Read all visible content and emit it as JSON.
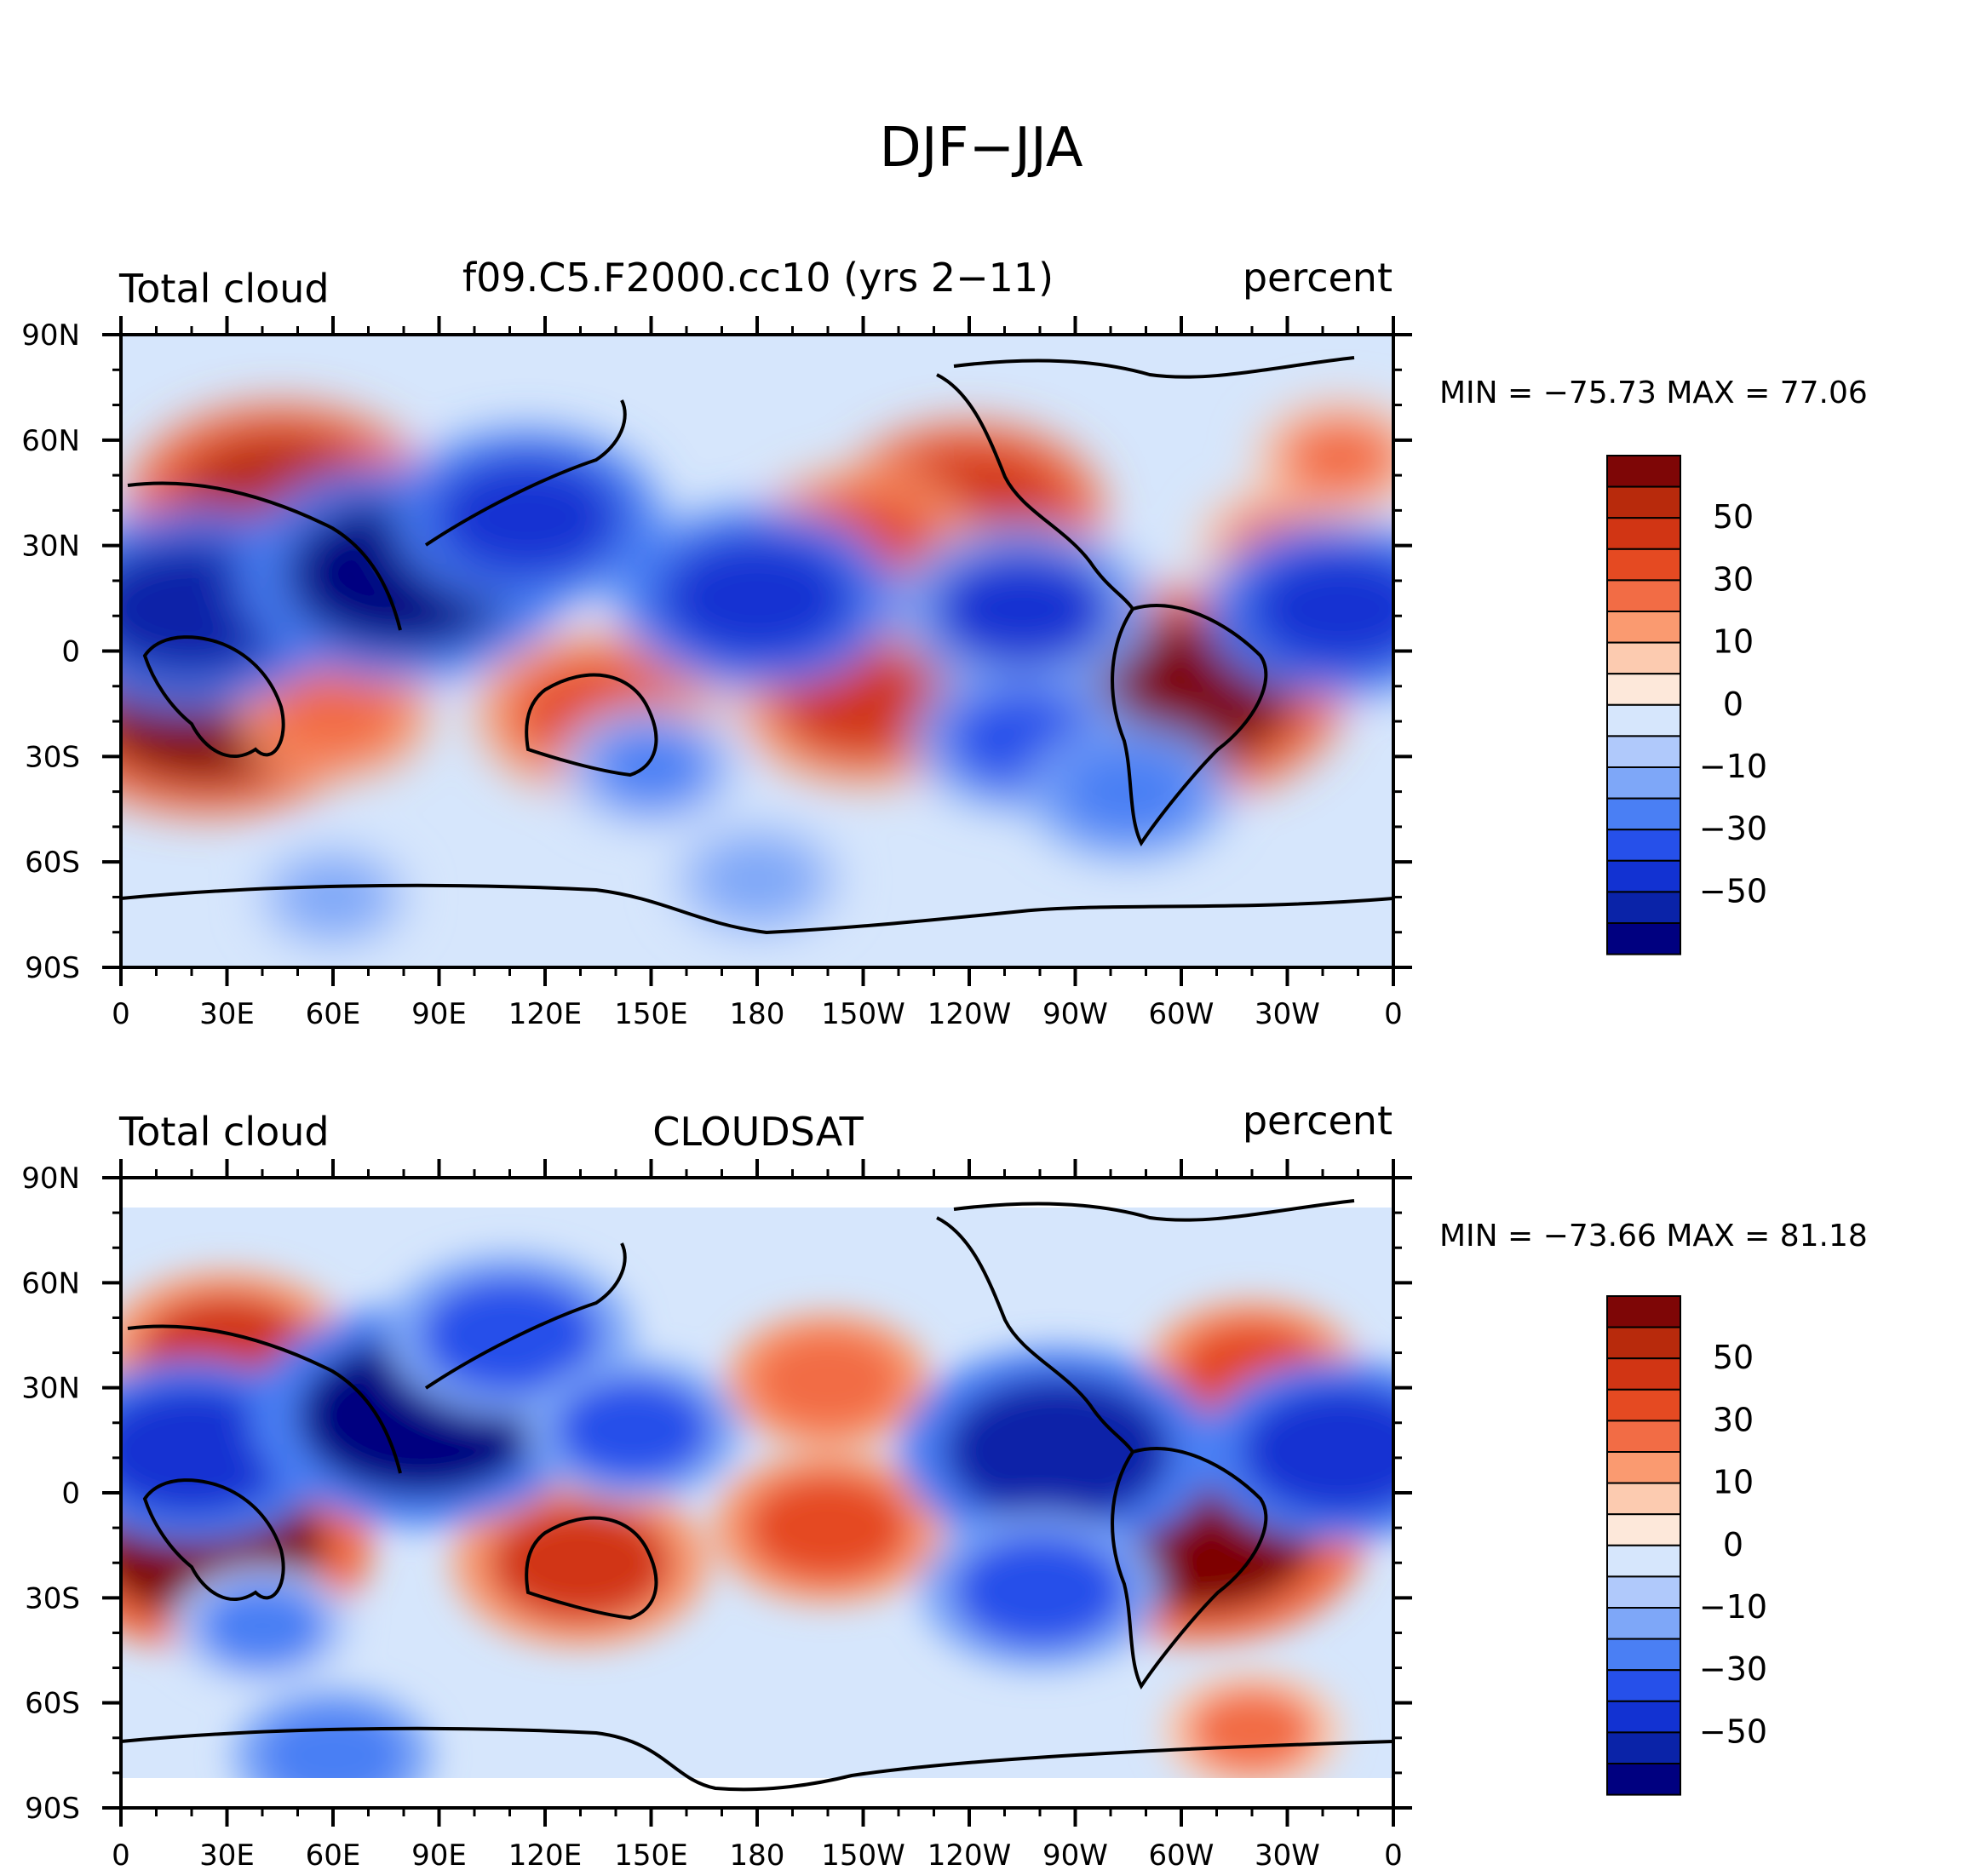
{
  "figure": {
    "title": "DJF−JJA"
  },
  "panels": [
    {
      "id": "model",
      "left_title": "Total cloud",
      "center_title": "f09.C5.F2000.cc10 (yrs 2−11)",
      "right_title": "percent",
      "min_max": "MIN = −75.73 MAX =   77.06",
      "lat_range": [
        -90,
        90
      ]
    },
    {
      "id": "obs",
      "left_title": "Total cloud",
      "center_title": "CLOUDSAT",
      "right_title": "percent",
      "min_max": "MIN = −73.66 MAX =   81.18",
      "lat_range": [
        -82,
        82
      ]
    }
  ],
  "axes": {
    "lat_ticks": [
      {
        "value": 90,
        "label": "90N"
      },
      {
        "value": 60,
        "label": "60N"
      },
      {
        "value": 30,
        "label": "30N"
      },
      {
        "value": 0,
        "label": "0"
      },
      {
        "value": -30,
        "label": "30S"
      },
      {
        "value": -60,
        "label": "60S"
      },
      {
        "value": -90,
        "label": "90S"
      }
    ],
    "lon_ticks": [
      {
        "value": 0,
        "label": "0"
      },
      {
        "value": 30,
        "label": "30E"
      },
      {
        "value": 60,
        "label": "60E"
      },
      {
        "value": 90,
        "label": "90E"
      },
      {
        "value": 120,
        "label": "120E"
      },
      {
        "value": 150,
        "label": "150E"
      },
      {
        "value": 180,
        "label": "180"
      },
      {
        "value": 210,
        "label": "150W"
      },
      {
        "value": 240,
        "label": "120W"
      },
      {
        "value": 270,
        "label": "90W"
      },
      {
        "value": 300,
        "label": "60W"
      },
      {
        "value": 330,
        "label": "30W"
      },
      {
        "value": 360,
        "label": "0"
      }
    ]
  },
  "colorbar": {
    "labels": [
      "50",
      "30",
      "10",
      "0",
      "−10",
      "−30",
      "−50"
    ],
    "levels": [
      -70,
      -60,
      -50,
      -40,
      -30,
      -20,
      -10,
      -5,
      0,
      5,
      10,
      20,
      30,
      40,
      50,
      60,
      70
    ],
    "colors": [
      "#000080",
      "#0a23a8",
      "#1232d2",
      "#2650ea",
      "#4a7ff4",
      "#7ea7f8",
      "#b0c9fb",
      "#d6e6fc",
      "#fde8da",
      "#fccbb0",
      "#fa9a70",
      "#f26c45",
      "#e54a22",
      "#d13514",
      "#b82a0c",
      "#7e0606"
    ]
  },
  "chart_data": [
    {
      "type": "heatmap",
      "title": "f09.C5.F2000.cc10 (yrs 2−11)",
      "variable": "Total cloud",
      "units": "percent",
      "min": -75.73,
      "max": 77.06,
      "lon_range": [
        0,
        360
      ],
      "lat_range": [
        -90,
        90
      ],
      "anomalies": [
        {
          "lon": 25,
          "lat": -15,
          "value": 65
        },
        {
          "lon": 300,
          "lat": -12,
          "value": 60
        },
        {
          "lon": 45,
          "lat": 42,
          "value": 55
        },
        {
          "lon": 240,
          "lat": 40,
          "value": 45
        },
        {
          "lon": 135,
          "lat": -18,
          "value": 38
        },
        {
          "lon": 210,
          "lat": -15,
          "value": 40
        },
        {
          "lon": 210,
          "lat": 30,
          "value": 35
        },
        {
          "lon": 60,
          "lat": -18,
          "value": 25
        },
        {
          "lon": 330,
          "lat": 30,
          "value": 22
        },
        {
          "lon": 345,
          "lat": 55,
          "value": 20
        },
        {
          "lon": 20,
          "lat": 12,
          "value": -55
        },
        {
          "lon": 80,
          "lat": 22,
          "value": -62
        },
        {
          "lon": 115,
          "lat": 38,
          "value": -45
        },
        {
          "lon": 180,
          "lat": 15,
          "value": -48
        },
        {
          "lon": 255,
          "lat": 12,
          "value": -42
        },
        {
          "lon": 345,
          "lat": 12,
          "value": -45
        },
        {
          "lon": 255,
          "lat": -25,
          "value": -32
        },
        {
          "lon": 285,
          "lat": -40,
          "value": -28
        },
        {
          "lon": 150,
          "lat": -33,
          "value": -22
        },
        {
          "lon": 180,
          "lat": -65,
          "value": -20
        },
        {
          "lon": 60,
          "lat": -70,
          "value": -15
        }
      ]
    },
    {
      "type": "heatmap",
      "title": "CLOUDSAT",
      "variable": "Total cloud",
      "units": "percent",
      "min": -73.66,
      "max": 81.18,
      "lon_range": [
        0,
        360
      ],
      "lat_range": [
        -82,
        82
      ],
      "anomalies": [
        {
          "lon": 25,
          "lat": -15,
          "value": 60
        },
        {
          "lon": 305,
          "lat": -12,
          "value": 62
        },
        {
          "lon": 30,
          "lat": 40,
          "value": 40
        },
        {
          "lon": 130,
          "lat": -20,
          "value": 42
        },
        {
          "lon": 200,
          "lat": -10,
          "value": 35
        },
        {
          "lon": 200,
          "lat": 32,
          "value": 28
        },
        {
          "lon": 320,
          "lat": 35,
          "value": 30
        },
        {
          "lon": 320,
          "lat": -68,
          "value": 22
        },
        {
          "lon": 20,
          "lat": 12,
          "value": -48
        },
        {
          "lon": 85,
          "lat": 22,
          "value": -65
        },
        {
          "lon": 110,
          "lat": 45,
          "value": -40
        },
        {
          "lon": 145,
          "lat": 18,
          "value": -32
        },
        {
          "lon": 265,
          "lat": 12,
          "value": -58
        },
        {
          "lon": 345,
          "lat": 12,
          "value": -48
        },
        {
          "lon": 260,
          "lat": -28,
          "value": -38
        },
        {
          "lon": 40,
          "lat": -38,
          "value": -22
        },
        {
          "lon": 60,
          "lat": -75,
          "value": -28
        }
      ]
    }
  ]
}
